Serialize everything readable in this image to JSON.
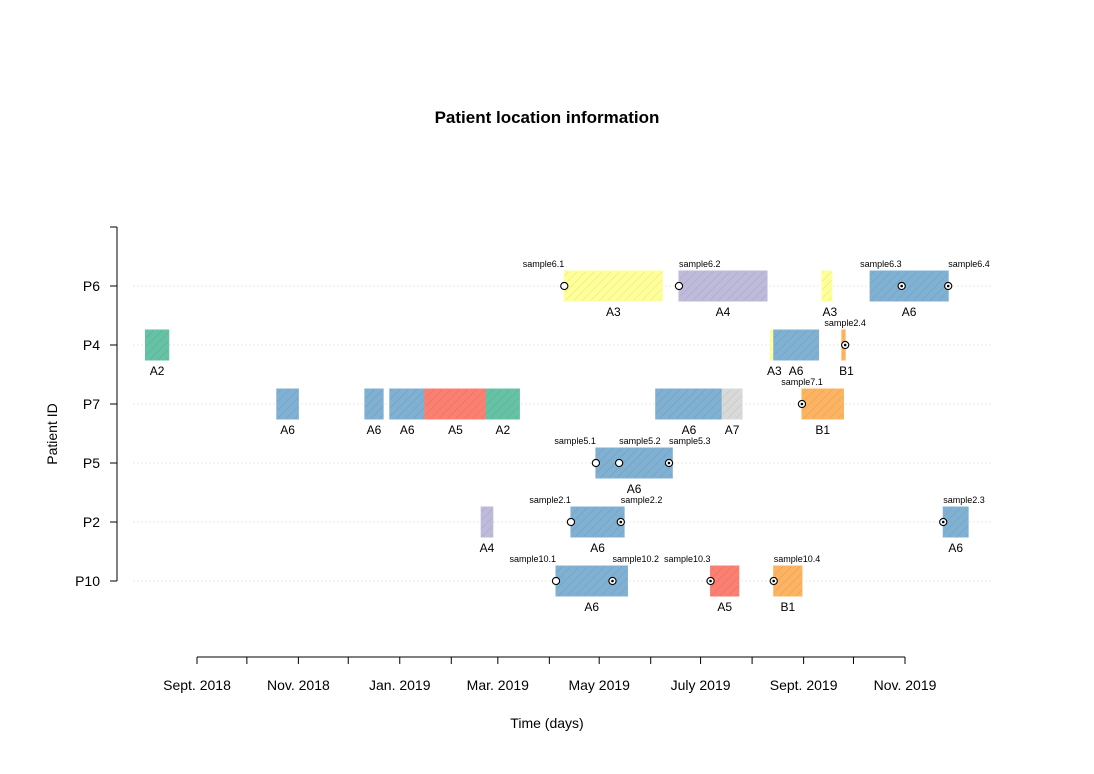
{
  "chart_data": {
    "type": "timeline",
    "title": "Patient location information",
    "xlabel": "Time (days)",
    "ylabel": "Patient ID",
    "x_ticks": [
      "Sept. 2018",
      "Nov. 2018",
      "Jan. 2019",
      "Mar. 2019",
      "May 2019",
      "July 2019",
      "Sept. 2019",
      "Nov. 2019"
    ],
    "x_tick_dates": [
      "2018-09-01",
      "2018-11-01",
      "2019-01-01",
      "2019-03-01",
      "2019-05-01",
      "2019-07-01",
      "2019-09-01",
      "2019-11-01"
    ],
    "xlim": [
      "2018-08-01",
      "2019-11-30"
    ],
    "rows": [
      "P6",
      "P4",
      "P7",
      "P5",
      "P2",
      "P10"
    ],
    "location_colors": {
      "A2": "#66C2A5",
      "A3": "#FFFF99",
      "A4": "#BEBADA",
      "A5": "#FB8072",
      "A6": "#80B1D3",
      "A7": "#D9D9D9",
      "B1": "#FDB462"
    },
    "stays": [
      {
        "patient": "P6",
        "location": "A3",
        "start": "2019-04-10",
        "end": "2019-06-08",
        "label": "A3"
      },
      {
        "patient": "P6",
        "location": "A4",
        "start": "2019-06-18",
        "end": "2019-08-10",
        "label": "A4"
      },
      {
        "patient": "P6",
        "location": "A3",
        "start": "2019-09-12",
        "end": "2019-09-18",
        "label": "A3"
      },
      {
        "patient": "P6",
        "location": "A6",
        "start": "2019-10-11",
        "end": "2019-11-27",
        "label": "A6"
      },
      {
        "patient": "P4",
        "location": "A2",
        "start": "2018-08-01",
        "end": "2018-08-15",
        "label": "A2"
      },
      {
        "patient": "P4",
        "location": "A3",
        "start": "2019-08-12",
        "end": "2019-08-13",
        "label": "A3"
      },
      {
        "patient": "P4",
        "location": "A6",
        "start": "2019-08-14",
        "end": "2019-09-10",
        "label": "A6"
      },
      {
        "patient": "P4",
        "location": "B1",
        "start": "2019-09-24",
        "end": "2019-09-26",
        "label": "B1"
      },
      {
        "patient": "P7",
        "location": "A6",
        "start": "2018-10-19",
        "end": "2018-11-01",
        "label": "A6"
      },
      {
        "patient": "P7",
        "location": "A6",
        "start": "2018-12-11",
        "end": "2018-12-22",
        "label": "A6"
      },
      {
        "patient": "P7",
        "location": "A6",
        "start": "2018-12-26",
        "end": "2019-01-16",
        "label": "A6"
      },
      {
        "patient": "P7",
        "location": "A5",
        "start": "2019-01-16",
        "end": "2019-02-22",
        "label": "A5"
      },
      {
        "patient": "P7",
        "location": "A2",
        "start": "2019-02-22",
        "end": "2019-03-14",
        "label": "A2"
      },
      {
        "patient": "P7",
        "location": "A6",
        "start": "2019-06-04",
        "end": "2019-07-14",
        "label": "A6"
      },
      {
        "patient": "P7",
        "location": "A7",
        "start": "2019-07-14",
        "end": "2019-07-26",
        "label": "A7"
      },
      {
        "patient": "P7",
        "location": "B1",
        "start": "2019-08-31",
        "end": "2019-09-25",
        "label": "B1"
      },
      {
        "patient": "P5",
        "location": "A6",
        "start": "2019-04-29",
        "end": "2019-06-14",
        "label": "A6"
      },
      {
        "patient": "P2",
        "location": "A4",
        "start": "2019-02-19",
        "end": "2019-02-26",
        "label": "A4"
      },
      {
        "patient": "P2",
        "location": "A6",
        "start": "2019-04-14",
        "end": "2019-05-16",
        "label": "A6"
      },
      {
        "patient": "P2",
        "location": "A6",
        "start": "2019-11-24",
        "end": "2019-12-09",
        "label": "A6"
      },
      {
        "patient": "P10",
        "location": "A6",
        "start": "2019-04-05",
        "end": "2019-05-18",
        "label": "A6"
      },
      {
        "patient": "P10",
        "location": "A5",
        "start": "2019-07-07",
        "end": "2019-07-24",
        "label": "A5"
      },
      {
        "patient": "P10",
        "location": "B1",
        "start": "2019-08-14",
        "end": "2019-08-31",
        "label": "B1"
      }
    ],
    "samples": [
      {
        "patient": "P6",
        "name": "sample6.1",
        "date": "2019-04-10",
        "style": "open",
        "label_side": "left"
      },
      {
        "patient": "P6",
        "name": "sample6.2",
        "date": "2019-06-18",
        "style": "open",
        "label_side": "right"
      },
      {
        "patient": "P6",
        "name": "sample6.3",
        "date": "2019-10-30",
        "style": "dot",
        "label_side": "left"
      },
      {
        "patient": "P6",
        "name": "sample6.4",
        "date": "2019-11-27",
        "style": "dot",
        "label_side": "right"
      },
      {
        "patient": "P4",
        "name": "sample2.4",
        "date": "2019-09-26",
        "style": "dot",
        "label_side": "center"
      },
      {
        "patient": "P7",
        "name": "sample7.1",
        "date": "2019-08-31",
        "style": "dot",
        "label_side": "center"
      },
      {
        "patient": "P5",
        "name": "sample5.1",
        "date": "2019-04-29",
        "style": "open",
        "label_side": "left"
      },
      {
        "patient": "P5",
        "name": "sample5.2",
        "date": "2019-05-13",
        "style": "open",
        "label_side": "right"
      },
      {
        "patient": "P5",
        "name": "sample5.3",
        "date": "2019-06-12",
        "style": "dot",
        "label_side": "right"
      },
      {
        "patient": "P2",
        "name": "sample2.1",
        "date": "2019-04-14",
        "style": "open",
        "label_side": "left"
      },
      {
        "patient": "P2",
        "name": "sample2.2",
        "date": "2019-05-14",
        "style": "dot",
        "label_side": "right"
      },
      {
        "patient": "P2",
        "name": "sample2.3",
        "date": "2019-11-24",
        "style": "dot",
        "label_side": "right"
      },
      {
        "patient": "P10",
        "name": "sample10.1",
        "date": "2019-04-05",
        "style": "open",
        "label_side": "left"
      },
      {
        "patient": "P10",
        "name": "sample10.2",
        "date": "2019-05-09",
        "style": "dot",
        "label_side": "right"
      },
      {
        "patient": "P10",
        "name": "sample10.3",
        "date": "2019-07-07",
        "style": "dot",
        "label_side": "left"
      },
      {
        "patient": "P10",
        "name": "sample10.4",
        "date": "2019-08-14",
        "style": "dot",
        "label_side": "right"
      }
    ],
    "grid": "horizontal-dotted"
  }
}
